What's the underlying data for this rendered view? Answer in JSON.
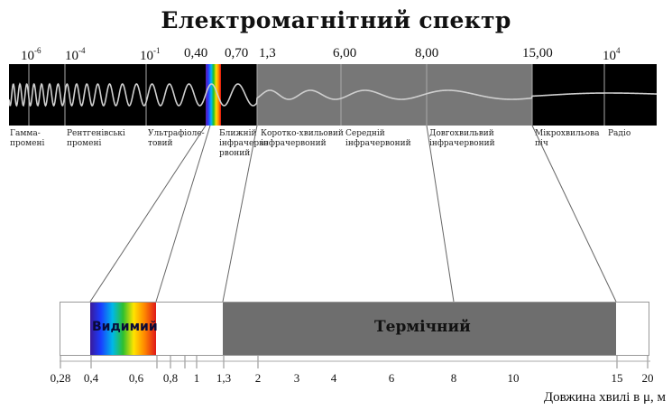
{
  "title": "Електромагнітний спектр",
  "top_ticks": [
    {
      "base": "10",
      "exp": "-6"
    },
    {
      "base": "10",
      "exp": "-4"
    },
    {
      "base": "10",
      "exp": "-1"
    },
    {
      "base": "0,40",
      "exp": ""
    },
    {
      "base": "0,70",
      "exp": ""
    },
    {
      "base": "1,3",
      "exp": ""
    },
    {
      "base": "6,00",
      "exp": ""
    },
    {
      "base": "8,00",
      "exp": ""
    },
    {
      "base": "15,00",
      "exp": ""
    },
    {
      "base": "10",
      "exp": "4"
    }
  ],
  "bands": [
    {
      "l1": "Гамма-",
      "l2": "промені",
      "l3": ""
    },
    {
      "l1": "Рентгенівські",
      "l2": "промені",
      "l3": ""
    },
    {
      "l1": "Ультрафіоле-",
      "l2": "товий",
      "l3": ""
    },
    {
      "l1": "Ближній",
      "l2": "інфрачерво",
      "l3": "рвоний"
    },
    {
      "l1": "Коротко-хвильовий",
      "l2": "інфрачервоний",
      "l3": ""
    },
    {
      "l1": "Середній",
      "l2": "інфрачервоний",
      "l3": ""
    },
    {
      "l1": "Довгохвильвий",
      "l2": "інфрачервоний",
      "l3": ""
    },
    {
      "l1": "Мікрохвильова",
      "l2": "піч",
      "l3": ""
    },
    {
      "l1": "Радіо",
      "l2": "",
      "l3": ""
    }
  ],
  "lower": {
    "visible_label": "Видимий",
    "thermal_label": "Термічний",
    "ticks": [
      "0,28",
      "0,4",
      "0,6",
      "0,8",
      "1",
      "1,3",
      "2",
      "3",
      "4",
      "6",
      "8",
      "10",
      "15",
      "20"
    ],
    "axis_label": "Довжина хвилі в  μ, м"
  }
}
